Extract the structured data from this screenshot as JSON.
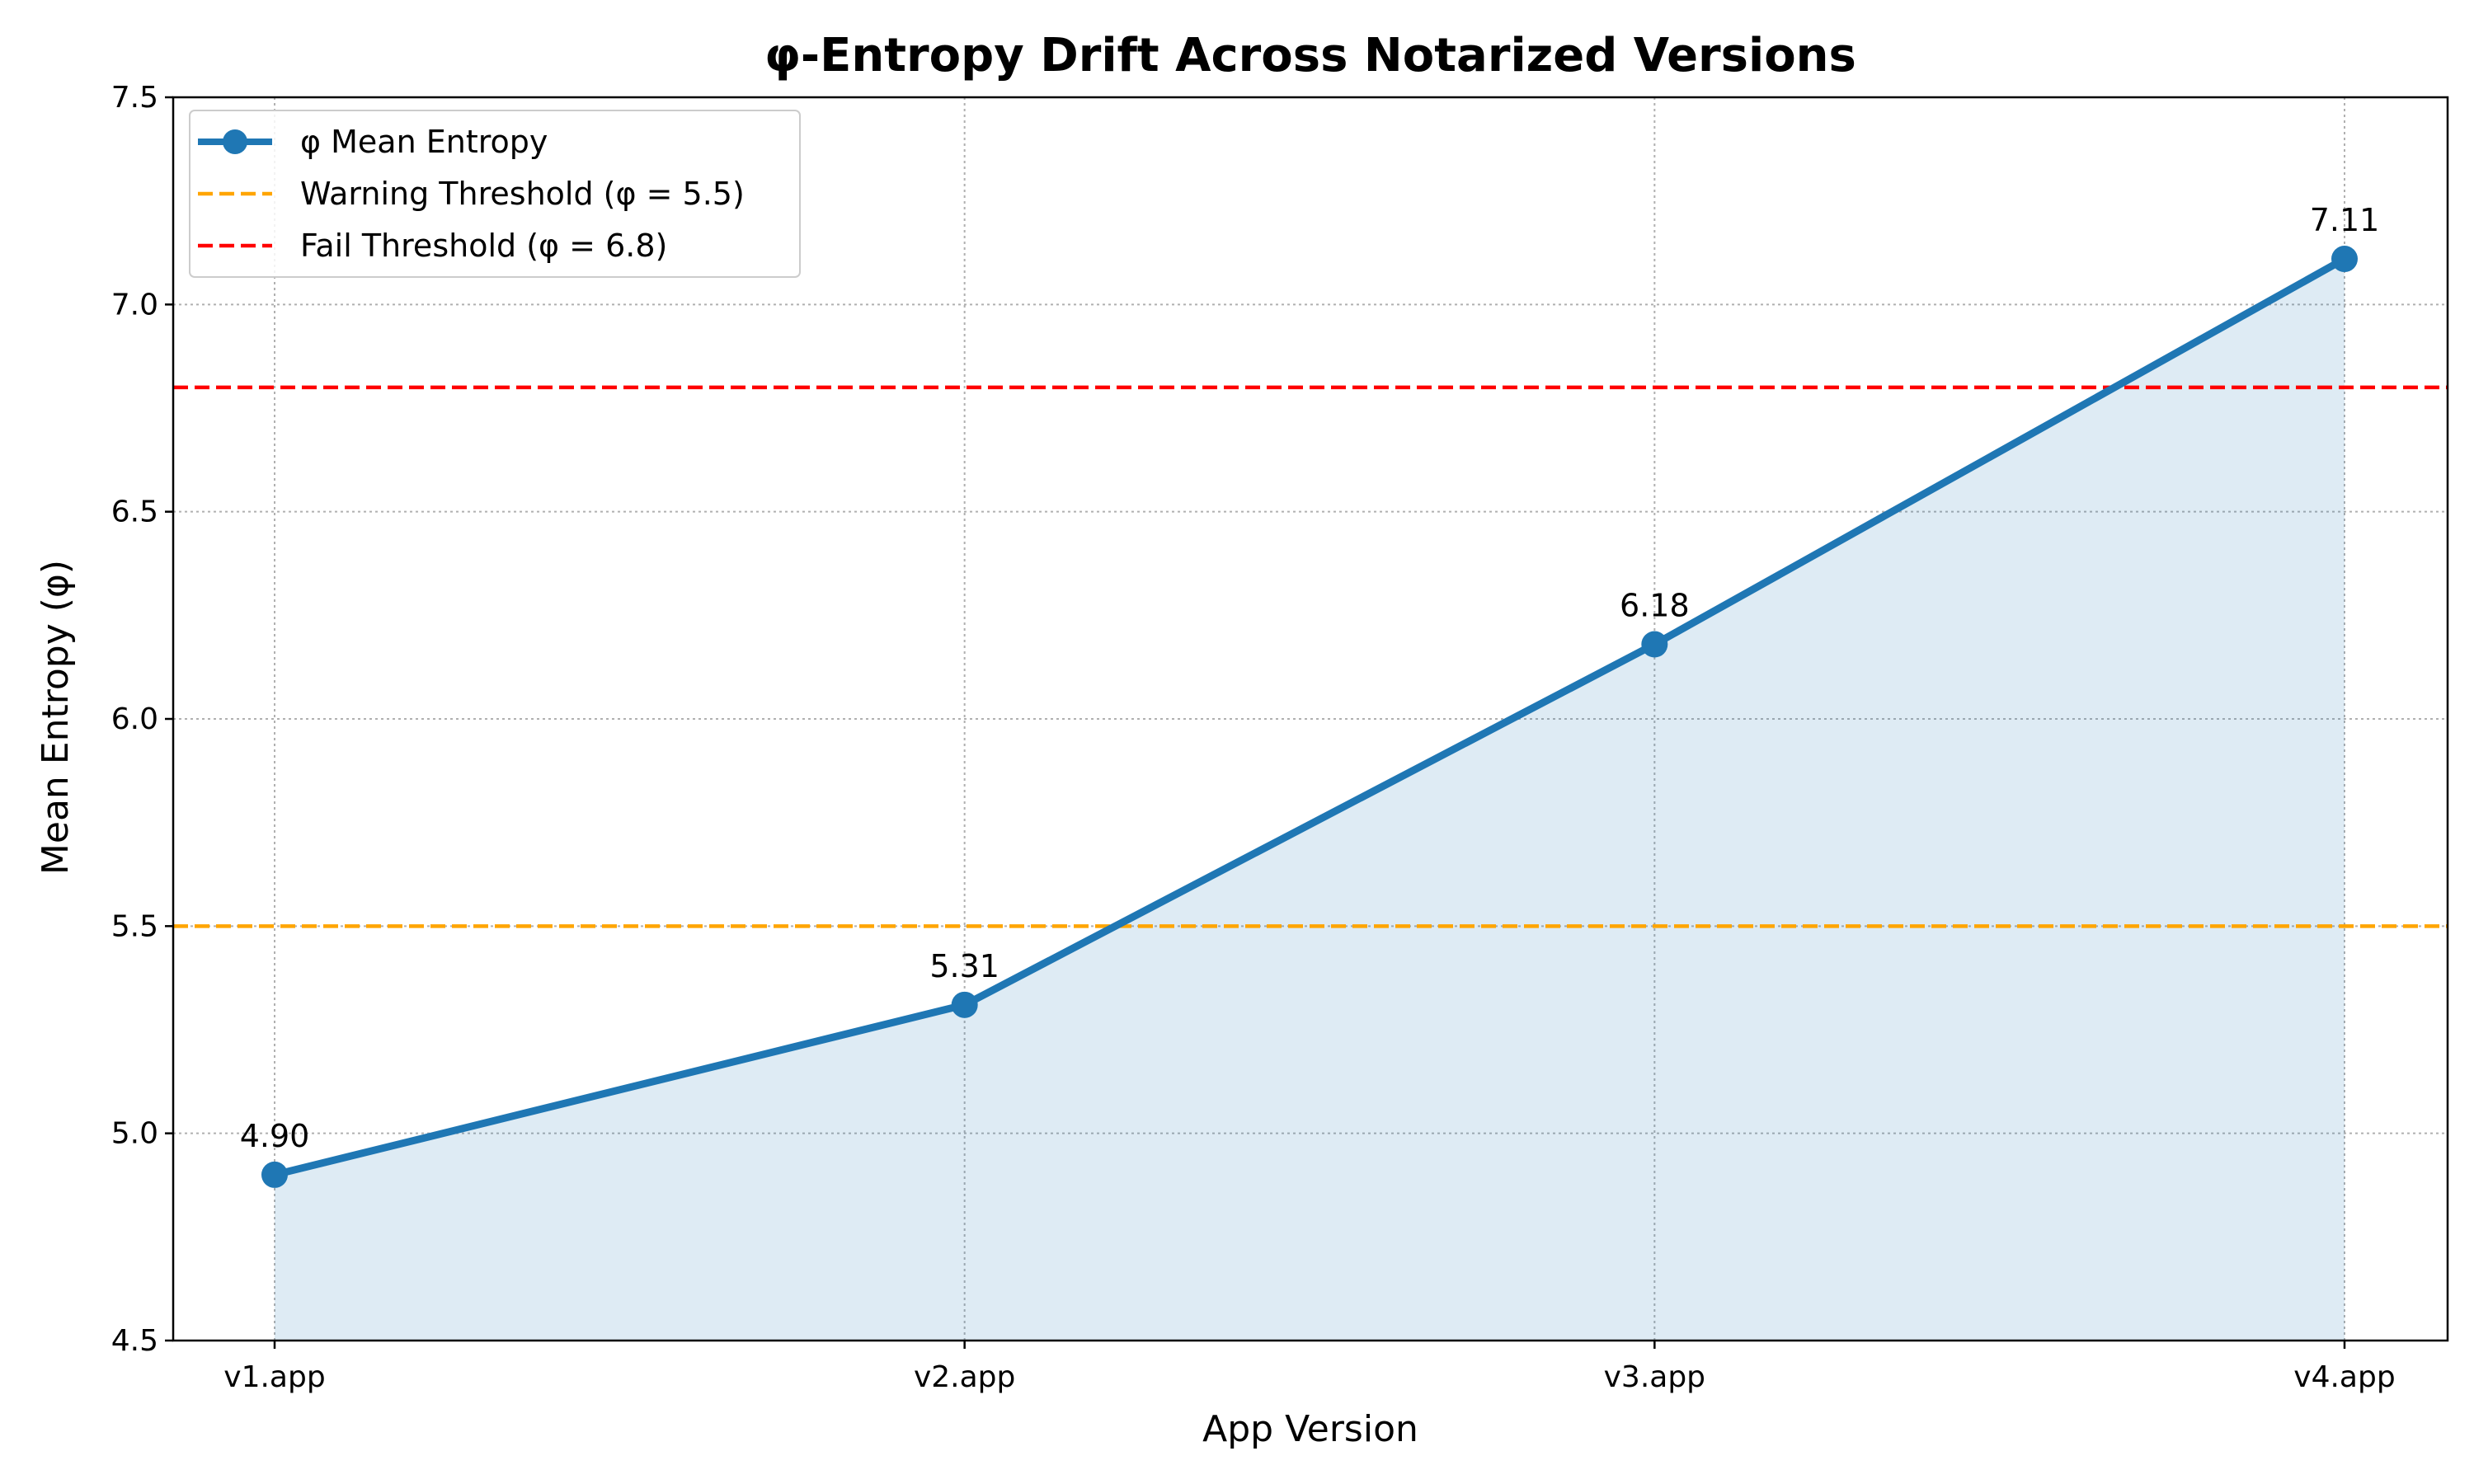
{
  "chart_data": {
    "type": "line",
    "title": "φ-Entropy Drift Across Notarized Versions",
    "xlabel": "App Version",
    "ylabel": "Mean Entropy (φ)",
    "categories": [
      "v1.app",
      "v2.app",
      "v3.app",
      "v4.app"
    ],
    "ylim": [
      4.5,
      7.5
    ],
    "yticks": [
      "4.5",
      "5.0",
      "5.5",
      "6.0",
      "6.5",
      "7.0",
      "7.5"
    ],
    "grid": true,
    "legend_position": "top-left",
    "series": [
      {
        "name": "φ Mean Entropy",
        "values": [
          4.9,
          5.31,
          6.18,
          7.11
        ],
        "labels": [
          "4.90",
          "5.31",
          "6.18",
          "7.11"
        ],
        "color": "#1f77b4",
        "fill": true,
        "markers": true
      }
    ],
    "thresholds": [
      {
        "name": "Warning Threshold (φ = 5.5)",
        "value": 5.5,
        "color": "#ffa500",
        "style": "dashed"
      },
      {
        "name": "Fail Threshold (φ = 6.8)",
        "value": 6.8,
        "color": "#ff0000",
        "style": "dashed"
      }
    ]
  }
}
